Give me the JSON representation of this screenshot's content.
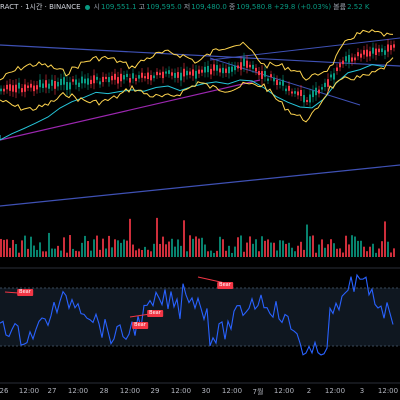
{
  "header": {
    "symbol": "RACT · 1시간 · BINANCE",
    "open_label": "시",
    "open": "109,551.1",
    "high_label": "고",
    "high": "109,595.0",
    "low_label": "저",
    "low": "109,480.0",
    "close_label": "종",
    "close": "109,580.8",
    "change": "+29.8 (+0.03%)",
    "volume_label": "볼륨",
    "volume": "2.52 K"
  },
  "time_axis": [
    "26",
    "12:00",
    "27",
    "12:00",
    "28",
    "12:00",
    "29",
    "12:00",
    "30",
    "12:00",
    "7월",
    "12:00",
    "2",
    "12:00",
    "3",
    "12:00"
  ],
  "signals": [
    {
      "label": "Bear"
    },
    {
      "label": "Bear"
    },
    {
      "label": "Bear"
    },
    {
      "label": "Bear"
    }
  ],
  "colors": {
    "background": "#000000",
    "up": "#089981",
    "down": "#f23645",
    "bollinger": "#ffd54f",
    "rsi_line": "#2962ff",
    "trendline": "#3f51b5",
    "ma_purple": "#9c27b0",
    "ma_teal": "#26c6da"
  }
}
